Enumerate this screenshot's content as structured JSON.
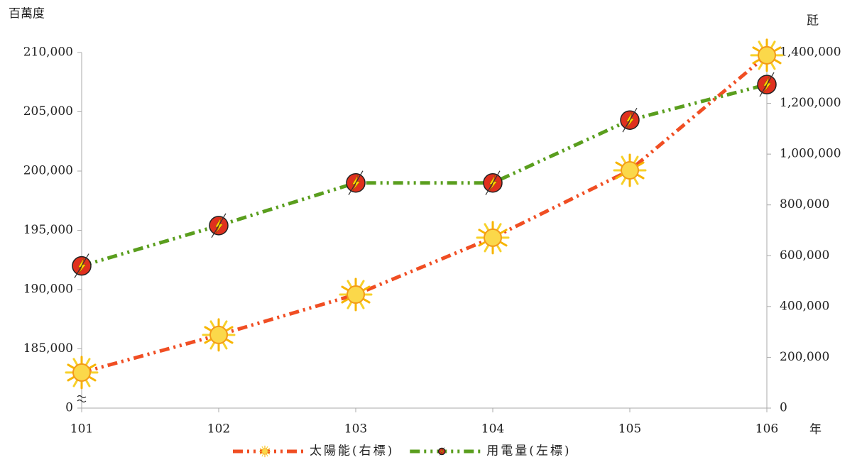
{
  "chart_data": {
    "type": "line",
    "categories": [
      "101",
      "102",
      "103",
      "104",
      "105",
      "106"
    ],
    "x_label": "年",
    "y_label": "百萬度",
    "y2_label": "瓩",
    "ylim": [
      180000,
      210000
    ],
    "y_axis_break": true,
    "yticks": [
      0,
      {
        "value": 185000,
        "label": "185,000"
      },
      {
        "value": 190000,
        "label": "190,000"
      },
      {
        "value": 195000,
        "label": "195,000"
      },
      {
        "value": 200000,
        "label": "200,000"
      },
      {
        "value": 205000,
        "label": "205,000"
      },
      {
        "value": 210000,
        "label": "210,000"
      }
    ],
    "y2lim": [
      0,
      1400000
    ],
    "y2ticks": [
      0,
      {
        "value": 200000,
        "label": "200,000"
      },
      {
        "value": 400000,
        "label": "400,000"
      },
      {
        "value": 600000,
        "label": "600,000"
      },
      {
        "value": 800000,
        "label": "800,000"
      },
      {
        "value": 1000000,
        "label": "1,000,000"
      },
      {
        "value": 1200000,
        "label": "1,200,000"
      },
      {
        "value": 1400000,
        "label": "1,400,000"
      }
    ],
    "legend": "bottom",
    "series": [
      {
        "name": "太陽能(右標)",
        "color": "#f04e23",
        "axis": "y2",
        "marker": "sun",
        "values": [
          140000,
          288000,
          447000,
          671000,
          936000,
          1389000
        ]
      },
      {
        "name": "用電量(左標)",
        "color": "#5a9e1e",
        "axis": "y",
        "marker": "bolt",
        "values": [
          192000,
          195400,
          199000,
          199000,
          204300,
          207300
        ]
      }
    ]
  }
}
